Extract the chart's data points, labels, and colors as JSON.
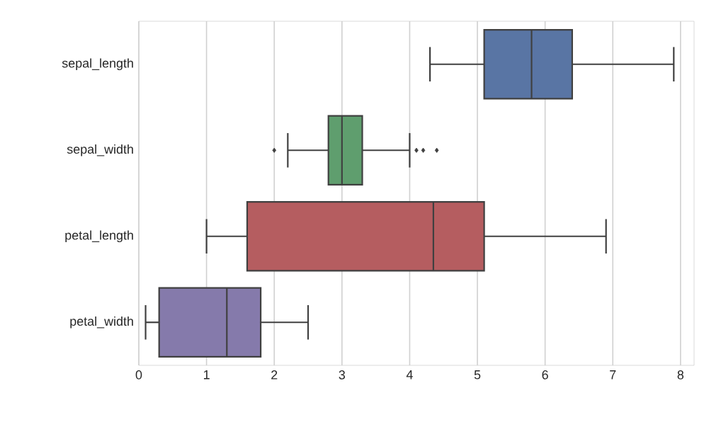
{
  "chart_data": {
    "type": "box",
    "orientation": "horizontal",
    "categories": [
      "sepal_length",
      "sepal_width",
      "petal_length",
      "petal_width"
    ],
    "boxes": [
      {
        "low": 4.3,
        "q1": 5.1,
        "median": 5.8,
        "q3": 6.4,
        "high": 7.9
      },
      {
        "low": 2.2,
        "q1": 2.8,
        "median": 3.0,
        "q3": 3.3,
        "high": 4.0,
        "outliers": [
          2.0,
          4.1,
          4.2,
          4.4
        ]
      },
      {
        "low": 1.0,
        "q1": 1.6,
        "median": 4.35,
        "q3": 5.1,
        "high": 6.9
      },
      {
        "low": 0.1,
        "q1": 0.3,
        "median": 1.3,
        "q3": 1.8,
        "high": 2.5
      }
    ],
    "colors": [
      "#5975a4",
      "#5f9e6e",
      "#b55d60",
      "#857aab"
    ],
    "xlim": [
      0,
      8.2
    ],
    "xticks": [
      0,
      1,
      2,
      3,
      4,
      5,
      6,
      7,
      8
    ],
    "grid": "x"
  }
}
